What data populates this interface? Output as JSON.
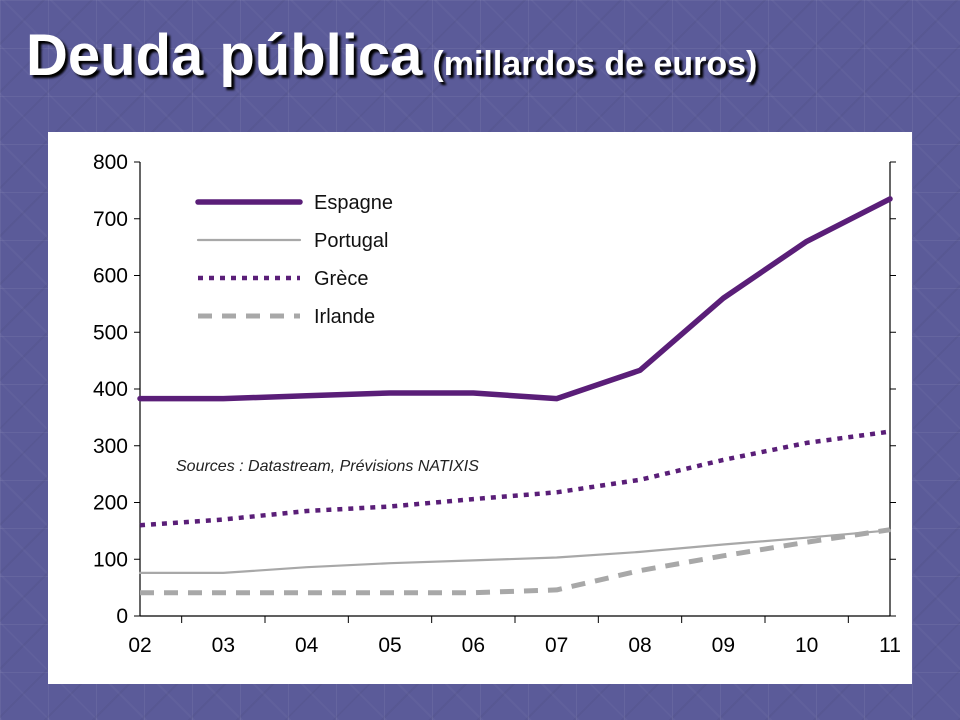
{
  "slide": {
    "title_main": "Deuda pública",
    "title_sub": "(millardos de euros)"
  },
  "chart_data": {
    "type": "line",
    "x": [
      "02",
      "03",
      "04",
      "05",
      "06",
      "07",
      "08",
      "09",
      "10",
      "11"
    ],
    "ylim": [
      0,
      800
    ],
    "yticks": [
      0,
      100,
      200,
      300,
      400,
      500,
      600,
      700,
      800
    ],
    "grid": false,
    "legend_position": "top-left",
    "annotation": "Sources : Datastream, Prévisions NATIXIS",
    "series": [
      {
        "name": "Espagne",
        "color": "#5a1e78",
        "style": "solid-thick",
        "values": [
          383,
          383,
          388,
          393,
          393,
          383,
          433,
          560,
          660,
          735
        ]
      },
      {
        "name": "Portugal",
        "color": "#a8a8a8",
        "style": "solid-thin",
        "values": [
          76,
          76,
          86,
          93,
          98,
          103,
          113,
          126,
          138,
          151
        ]
      },
      {
        "name": "Grèce",
        "color": "#5a1e78",
        "style": "dotted",
        "values": [
          160,
          170,
          185,
          193,
          206,
          218,
          240,
          275,
          305,
          325
        ]
      },
      {
        "name": "Irlande",
        "color": "#a8a8a8",
        "style": "dashed",
        "values": [
          41,
          41,
          41,
          41,
          41,
          46,
          80,
          106,
          130,
          152
        ]
      }
    ]
  }
}
